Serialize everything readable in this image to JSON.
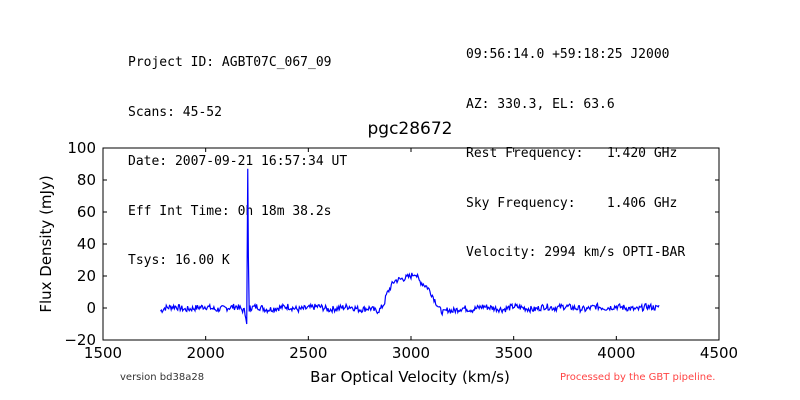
{
  "header": {
    "left_lines": [
      "Project ID: AGBT07C_067_09",
      "Scans: 45-52",
      "Date: 2007-09-21 16:57:34 UT",
      "Eff Int Time: 0h 18m 38.2s",
      "Tsys: 16.00 K"
    ],
    "right_lines": [
      "09:56:14.0 +59:18:25 J2000",
      "AZ: 330.3, EL: 63.6",
      "Rest Frequency:   1.420 GHz",
      "Sky Frequency:    1.406 GHz",
      "Velocity: 2994 km/s OPTI-BAR"
    ]
  },
  "footer": {
    "version": "version bd38a28",
    "processed": "Processed by the GBT pipeline.",
    "processed_color": "#ff4444"
  },
  "chart_data": {
    "type": "line",
    "title": "pgc28672",
    "xlabel": "Bar Optical Velocity (km/s)",
    "ylabel": "Flux Density (mJy)",
    "xlim": [
      1500,
      4500
    ],
    "ylim": [
      -20,
      100
    ],
    "xticks": [
      1500,
      2000,
      2500,
      3000,
      3500,
      4000,
      4500
    ],
    "yticks": [
      -20,
      0,
      20,
      40,
      60,
      80,
      100
    ],
    "grid": false,
    "line_color": "#0000ff",
    "series": [
      {
        "x": [
          1780,
          1800,
          1850,
          1900,
          1950,
          2000,
          2050,
          2100,
          2150,
          2190,
          2200,
          2205,
          2210,
          2215,
          2220,
          2250,
          2300,
          2350,
          2400,
          2450,
          2500,
          2550,
          2600,
          2650,
          2700,
          2750,
          2800,
          2830,
          2850,
          2870,
          2880,
          2900,
          2920,
          2950,
          2980,
          3000,
          3020,
          3040,
          3060,
          3080,
          3100,
          3120,
          3140,
          3160,
          3180,
          3200,
          3250,
          3300,
          3350,
          3400,
          3450,
          3500,
          3550,
          3600,
          3650,
          3700,
          3750,
          3800,
          3850,
          3900,
          3950,
          4000,
          4050,
          4100,
          4150,
          4200,
          4210
        ],
        "y": [
          -2,
          0,
          1,
          -1,
          0,
          1,
          -1,
          0,
          1,
          -2,
          -10,
          87,
          -5,
          2,
          0,
          1,
          -1,
          0,
          1,
          -1,
          0,
          1,
          -1,
          0,
          1,
          -1,
          0,
          -2,
          -1,
          3,
          8,
          13,
          17,
          18,
          19,
          20,
          22,
          17,
          15,
          13,
          9,
          4,
          -1,
          -3,
          -1,
          -2,
          0,
          -1,
          1,
          0,
          -1,
          1,
          0,
          -1,
          1,
          0,
          1,
          0,
          -1,
          1,
          0,
          1,
          0,
          -1,
          1,
          0,
          2
        ]
      }
    ]
  }
}
